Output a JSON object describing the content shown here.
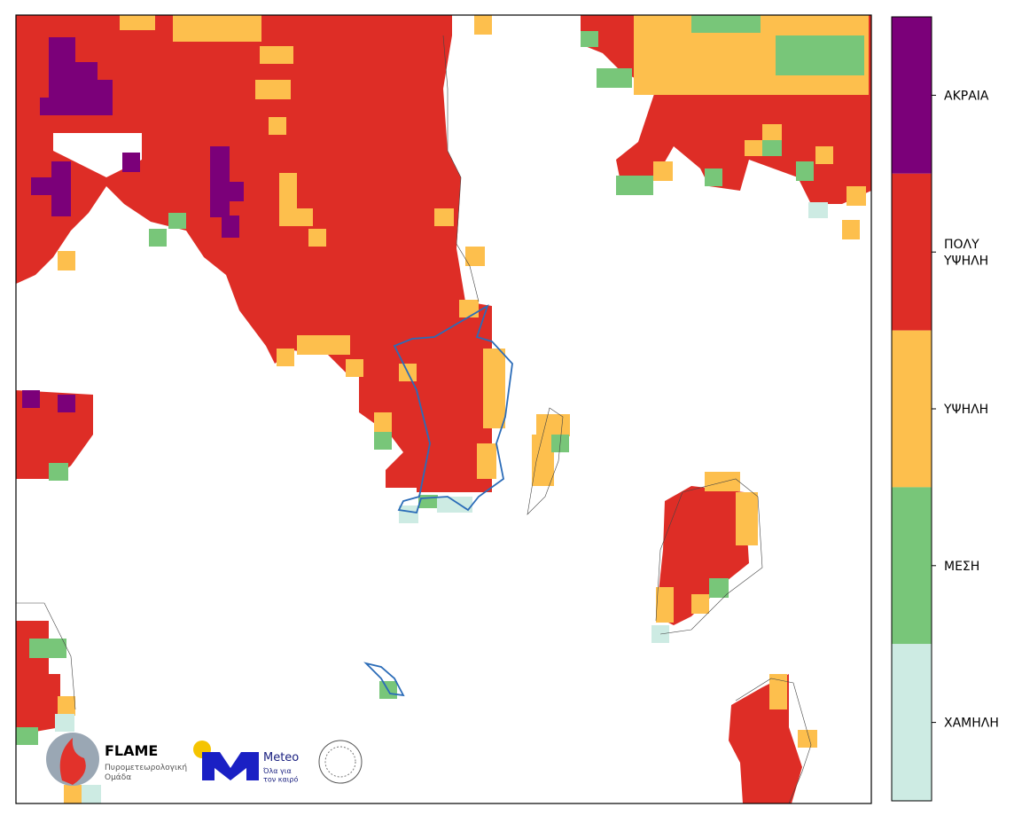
{
  "legend": {
    "levels": [
      {
        "label": "ΑΚΡΑΙΑ",
        "color": "#7b0079"
      },
      {
        "label": "ΠΟΛΥ\nΥΨΗΛΗ",
        "color": "#de2d26"
      },
      {
        "label": "ΥΨΗΛΗ",
        "color": "#fdbf4d"
      },
      {
        "label": "ΜΕΣΗ",
        "color": "#78c679"
      },
      {
        "label": "ΧΑΜΗΛΗ",
        "color": "#cdebe3"
      }
    ]
  },
  "logos": {
    "flame_title": "FLAME",
    "flame_subtitle": "Πυρομετεωρολογική\nΟμάδα",
    "meteo_title": "Meteo",
    "meteo_subtitle": "Όλα για\nτον καιρό"
  }
}
